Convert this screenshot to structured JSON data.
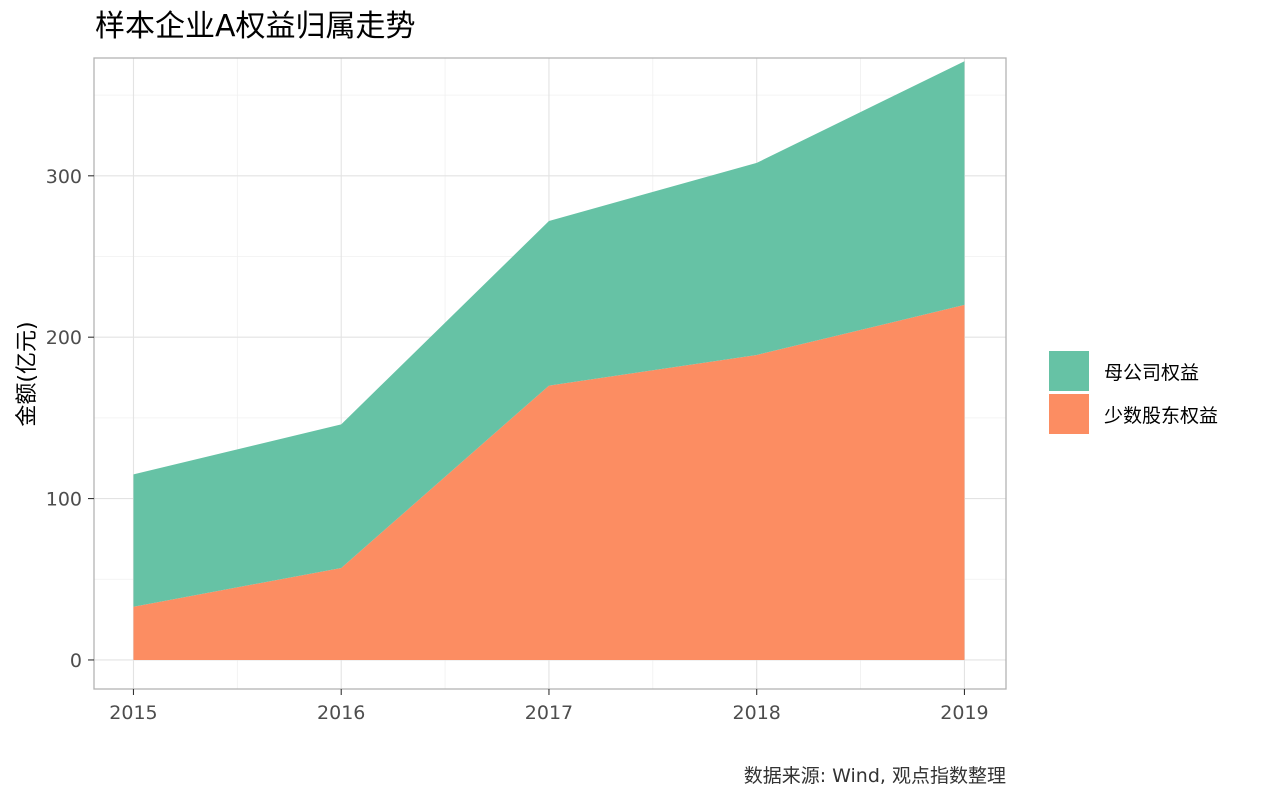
{
  "chart_data": {
    "type": "area",
    "stacked": true,
    "title": "样本企业A权益归属走势",
    "xlabel": "",
    "ylabel": "金额(亿元)",
    "caption": "数据来源: Wind, 观点指数整理",
    "x": [
      "2015",
      "2016",
      "2017",
      "2018",
      "2019"
    ],
    "xlim": [
      2014.81,
      2019.2
    ],
    "ylim": [
      -18,
      373
    ],
    "y_ticks": [
      "0",
      "100",
      "200",
      "300"
    ],
    "grid": true,
    "legend_position": "right",
    "series": [
      {
        "name": "少数股东权益",
        "color": "#fc8d62",
        "values": [
          33,
          57,
          170,
          189,
          220
        ]
      },
      {
        "name": "母公司权益",
        "color": "#66c2a5",
        "values": [
          82,
          89,
          102,
          119,
          151
        ]
      }
    ],
    "legend_order": [
      "母公司权益",
      "少数股东权益"
    ]
  }
}
